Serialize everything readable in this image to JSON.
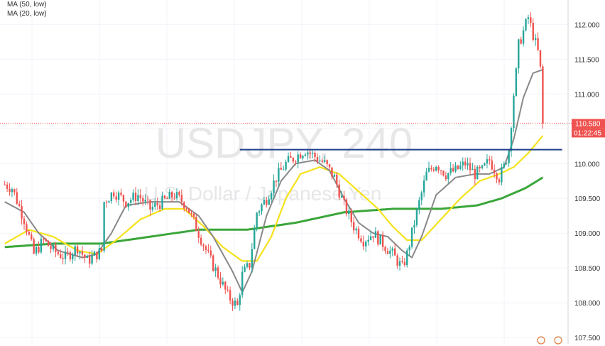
{
  "legend": {
    "ma50": "MA (50, low)",
    "ma20": "MA (20, low)"
  },
  "watermark": {
    "symbol": "USDJPY, 240",
    "description": "U.S. Dollar / Japanese Yen"
  },
  "colors": {
    "bull": "#26a69a",
    "bear": "#ef5350",
    "ma20": "#888888",
    "ma50": "#f5e21b",
    "ma200": "#3aa63a",
    "resistance": "#1f3f8f",
    "price_line": "#ef5350",
    "grid": "#f0f3fa",
    "badge_price": "#ef5350",
    "badge_time": "#ef5350"
  },
  "price_axis": {
    "last_price": "110.580",
    "countdown": "01:22:45"
  },
  "chart_data": {
    "type": "candlestick",
    "symbol": "USDJPY",
    "timeframe": "240",
    "ylim": [
      107.4,
      112.35
    ],
    "y_ticks": [
      "107.500",
      "108.000",
      "108.500",
      "109.000",
      "109.500",
      "110.000",
      "110.500",
      "111.000",
      "111.500",
      "112.000"
    ],
    "y_tick_values": [
      107.5,
      108.0,
      108.5,
      109.0,
      109.5,
      110.0,
      110.5,
      111.0,
      111.5,
      112.0
    ],
    "bars": 200,
    "close_anchors": [
      [
        0,
        109.7
      ],
      [
        3,
        109.65
      ],
      [
        8,
        109.2
      ],
      [
        12,
        108.7
      ],
      [
        16,
        108.9
      ],
      [
        20,
        108.75
      ],
      [
        25,
        108.65
      ],
      [
        30,
        108.8
      ],
      [
        34,
        108.6
      ],
      [
        38,
        108.7
      ],
      [
        40,
        108.75
      ],
      [
        41,
        109.45
      ],
      [
        45,
        109.6
      ],
      [
        50,
        109.45
      ],
      [
        55,
        109.55
      ],
      [
        60,
        109.35
      ],
      [
        65,
        109.45
      ],
      [
        70,
        109.55
      ],
      [
        75,
        109.4
      ],
      [
        80,
        109.0
      ],
      [
        85,
        108.6
      ],
      [
        88,
        108.4
      ],
      [
        92,
        108.1
      ],
      [
        96,
        107.95
      ],
      [
        98,
        108.4
      ],
      [
        101,
        108.55
      ],
      [
        104,
        109.3
      ],
      [
        108,
        109.5
      ],
      [
        112,
        109.8
      ],
      [
        116,
        110.0
      ],
      [
        120,
        110.1
      ],
      [
        124,
        110.2
      ],
      [
        128,
        110.1
      ],
      [
        132,
        110.0
      ],
      [
        136,
        109.8
      ],
      [
        140,
        109.4
      ],
      [
        144,
        109.1
      ],
      [
        148,
        108.9
      ],
      [
        152,
        109.0
      ],
      [
        156,
        108.85
      ],
      [
        160,
        108.7
      ],
      [
        164,
        108.5
      ],
      [
        166,
        108.7
      ],
      [
        170,
        109.3
      ],
      [
        174,
        109.85
      ],
      [
        178,
        110.0
      ],
      [
        182,
        109.85
      ],
      [
        186,
        109.9
      ],
      [
        190,
        110.0
      ],
      [
        194,
        109.85
      ],
      [
        197,
        109.9
      ],
      [
        200,
        110.05
      ],
      [
        204,
        109.8
      ],
      [
        206,
        109.95
      ],
      [
        208,
        110.2
      ],
      [
        210,
        111.0
      ],
      [
        211,
        111.3
      ],
      [
        212,
        111.7
      ],
      [
        214,
        111.9
      ],
      [
        216,
        112.1
      ],
      [
        218,
        111.85
      ],
      [
        220,
        111.6
      ],
      [
        221,
        111.35
      ],
      [
        222,
        110.58
      ]
    ],
    "ma20_anchors": [
      [
        0,
        109.45
      ],
      [
        8,
        109.3
      ],
      [
        14,
        109.0
      ],
      [
        22,
        108.75
      ],
      [
        32,
        108.65
      ],
      [
        38,
        108.7
      ],
      [
        44,
        109.0
      ],
      [
        50,
        109.4
      ],
      [
        60,
        109.45
      ],
      [
        72,
        109.45
      ],
      [
        80,
        109.25
      ],
      [
        86,
        108.95
      ],
      [
        94,
        108.45
      ],
      [
        98,
        108.15
      ],
      [
        102,
        108.45
      ],
      [
        108,
        109.25
      ],
      [
        114,
        109.75
      ],
      [
        120,
        110.0
      ],
      [
        128,
        110.05
      ],
      [
        134,
        109.9
      ],
      [
        140,
        109.5
      ],
      [
        146,
        109.15
      ],
      [
        152,
        109.0
      ],
      [
        158,
        108.95
      ],
      [
        164,
        108.75
      ],
      [
        168,
        108.65
      ],
      [
        172,
        108.95
      ],
      [
        178,
        109.55
      ],
      [
        186,
        109.8
      ],
      [
        194,
        109.85
      ],
      [
        200,
        109.85
      ],
      [
        206,
        109.95
      ],
      [
        210,
        110.35
      ],
      [
        214,
        110.95
      ],
      [
        218,
        111.3
      ],
      [
        222,
        111.35
      ]
    ],
    "ma50_anchors": [
      [
        0,
        108.85
      ],
      [
        10,
        109.05
      ],
      [
        20,
        108.95
      ],
      [
        30,
        108.75
      ],
      [
        38,
        108.7
      ],
      [
        46,
        108.9
      ],
      [
        56,
        109.2
      ],
      [
        66,
        109.35
      ],
      [
        74,
        109.35
      ],
      [
        82,
        109.1
      ],
      [
        90,
        108.8
      ],
      [
        98,
        108.6
      ],
      [
        104,
        108.6
      ],
      [
        110,
        108.95
      ],
      [
        116,
        109.5
      ],
      [
        122,
        109.85
      ],
      [
        130,
        109.95
      ],
      [
        138,
        109.85
      ],
      [
        146,
        109.6
      ],
      [
        154,
        109.35
      ],
      [
        160,
        109.1
      ],
      [
        166,
        108.9
      ],
      [
        172,
        108.9
      ],
      [
        180,
        109.2
      ],
      [
        188,
        109.5
      ],
      [
        196,
        109.75
      ],
      [
        204,
        109.85
      ],
      [
        210,
        109.95
      ],
      [
        216,
        110.15
      ],
      [
        222,
        110.4
      ]
    ],
    "ma200_anchors": [
      [
        0,
        108.8
      ],
      [
        20,
        108.85
      ],
      [
        40,
        108.85
      ],
      [
        60,
        108.95
      ],
      [
        80,
        109.05
      ],
      [
        100,
        109.05
      ],
      [
        120,
        109.15
      ],
      [
        140,
        109.3
      ],
      [
        160,
        109.35
      ],
      [
        180,
        109.35
      ],
      [
        195,
        109.4
      ],
      [
        205,
        109.5
      ],
      [
        215,
        109.65
      ],
      [
        222,
        109.8
      ]
    ],
    "resistance_level": 110.2,
    "resistance_from_bar": 97,
    "resistance_to_bar": 230
  }
}
